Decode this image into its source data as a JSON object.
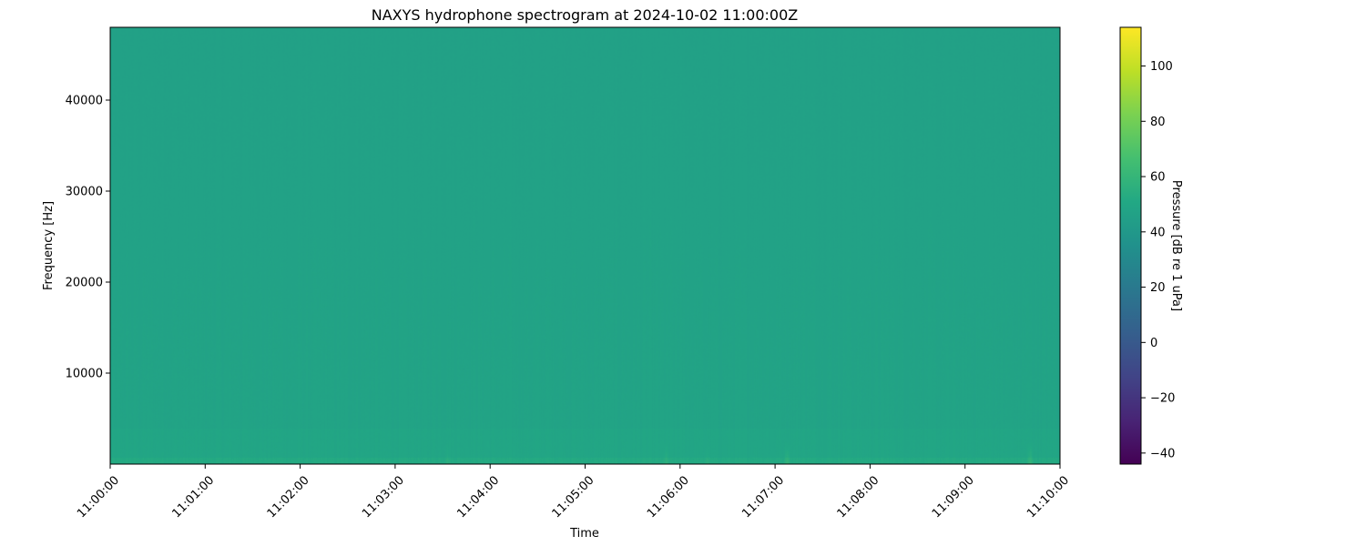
{
  "chart_data": {
    "type": "heatmap",
    "title": "NAXYS hydrophone spectrogram at 2024-10-02 11:00:00Z",
    "xlabel": "Time",
    "ylabel": "Frequency [Hz]",
    "xlim": [
      "11:00:00",
      "11:10:00"
    ],
    "x_ticks": [
      "11:00:00",
      "11:01:00",
      "11:02:00",
      "11:03:00",
      "11:04:00",
      "11:05:00",
      "11:06:00",
      "11:07:00",
      "11:08:00",
      "11:09:00",
      "11:10:00"
    ],
    "ylim": [
      0,
      48000
    ],
    "y_ticks": [
      10000,
      20000,
      30000,
      40000
    ],
    "colormap": "viridis",
    "colorbar": {
      "label": "Pressure [dB re 1 uPa]",
      "range": [
        -44,
        114
      ],
      "ticks": [
        -40,
        -20,
        0,
        20,
        40,
        60,
        80,
        100
      ]
    },
    "dominant_level_db": 48,
    "grid": false
  }
}
